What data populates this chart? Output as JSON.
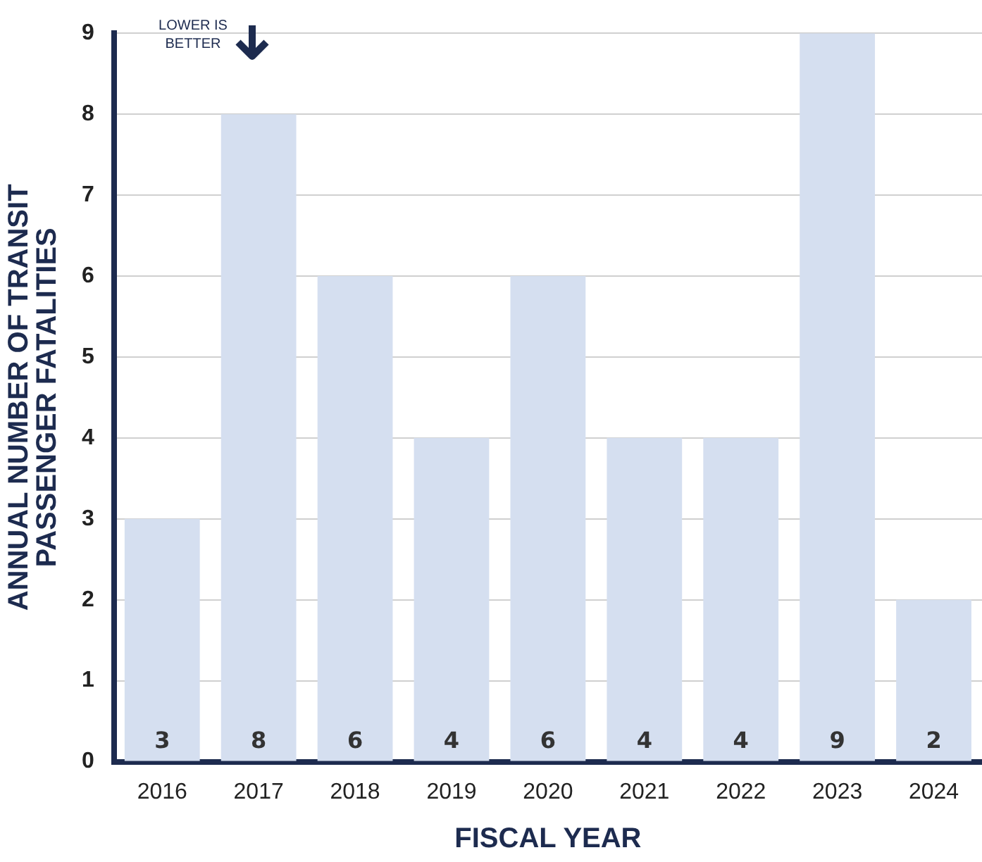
{
  "chart_data": {
    "type": "bar",
    "xlabel": "FISCAL YEAR",
    "ylabel": "ANNUAL NUMBER OF TRANSIT PASSENGER FATALITIES",
    "categories": [
      "2016",
      "2017",
      "2018",
      "2019",
      "2020",
      "2021",
      "2022",
      "2023",
      "2024"
    ],
    "values": [
      3,
      8,
      6,
      4,
      6,
      4,
      4,
      9,
      2
    ],
    "color": "#d5dff0",
    "ylim": [
      0,
      9
    ],
    "yticks": [
      0,
      1,
      2,
      3,
      4,
      5,
      6,
      7,
      8,
      9
    ],
    "grid": "y",
    "data_labels": true,
    "annotations": [
      "LOWER IS BETTER"
    ]
  }
}
